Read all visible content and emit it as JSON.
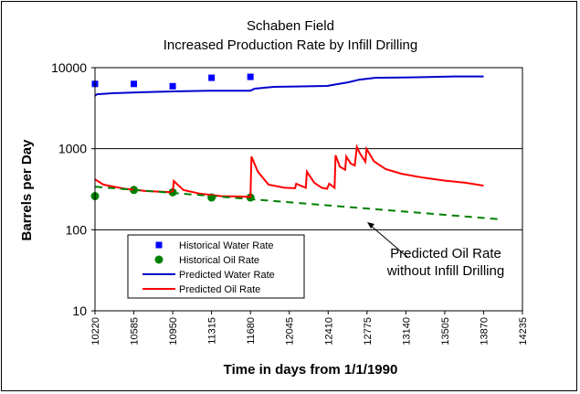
{
  "chart_data": {
    "type": "line",
    "title": "Schaben Field",
    "subtitle": "Increased Production Rate by Infill Drilling",
    "xlabel": "Time in days from 1/1/1990",
    "ylabel": "Barrels per Day",
    "xlim": [
      10220,
      14235
    ],
    "ylim": [
      10,
      10000
    ],
    "y_scale": "log",
    "grid": "horizontal major lines",
    "x_ticks": [
      "10220",
      "10585",
      "10950",
      "11315",
      "11680",
      "12045",
      "12410",
      "12775",
      "13140",
      "13505",
      "13870",
      "14235"
    ],
    "y_ticks": [
      "10",
      "100",
      "1000",
      "10000"
    ],
    "legend_position": "lower-left inside plot",
    "annotation": "Predicted Oil Rate\nwithout Infill Drilling",
    "series": [
      {
        "name": "Historical Water Rate",
        "kind": "marker-square",
        "color": "#0000ff",
        "points": [
          [
            10220,
            6300
          ],
          [
            10585,
            6300
          ],
          [
            10950,
            5900
          ],
          [
            11315,
            7500
          ],
          [
            11680,
            7700
          ]
        ]
      },
      {
        "name": "Historical Oil Rate",
        "kind": "marker-circle",
        "color": "#008000",
        "points": [
          [
            10220,
            260
          ],
          [
            10585,
            310
          ],
          [
            10950,
            290
          ],
          [
            11315,
            250
          ],
          [
            11680,
            250
          ]
        ]
      },
      {
        "name": "Predicted Water Rate",
        "kind": "line",
        "color": "#0000cc",
        "points": [
          [
            10220,
            4500
          ],
          [
            10240,
            4700
          ],
          [
            10400,
            4850
          ],
          [
            10700,
            5000
          ],
          [
            11000,
            5100
          ],
          [
            11300,
            5200
          ],
          [
            11680,
            5200
          ],
          [
            11720,
            5500
          ],
          [
            11900,
            5800
          ],
          [
            12100,
            5850
          ],
          [
            12400,
            5950
          ],
          [
            12600,
            6600
          ],
          [
            12700,
            7100
          ],
          [
            12850,
            7500
          ],
          [
            13200,
            7600
          ],
          [
            13600,
            7800
          ],
          [
            13870,
            7800
          ]
        ]
      },
      {
        "name": "Predicted Oil Rate",
        "kind": "line",
        "color": "#ff0000",
        "points": [
          [
            10220,
            420
          ],
          [
            10300,
            360
          ],
          [
            10500,
            320
          ],
          [
            10700,
            300
          ],
          [
            10950,
            290
          ],
          [
            10960,
            400
          ],
          [
            11050,
            310
          ],
          [
            11200,
            280
          ],
          [
            11400,
            260
          ],
          [
            11680,
            255
          ],
          [
            11690,
            800
          ],
          [
            11750,
            520
          ],
          [
            11850,
            360
          ],
          [
            12000,
            330
          ],
          [
            12100,
            325
          ],
          [
            12110,
            370
          ],
          [
            12150,
            350
          ],
          [
            12200,
            330
          ],
          [
            12210,
            520
          ],
          [
            12280,
            380
          ],
          [
            12350,
            330
          ],
          [
            12400,
            320
          ],
          [
            12420,
            370
          ],
          [
            12470,
            330
          ],
          [
            12480,
            830
          ],
          [
            12520,
            600
          ],
          [
            12570,
            550
          ],
          [
            12580,
            800
          ],
          [
            12620,
            660
          ],
          [
            12660,
            620
          ],
          [
            12680,
            1050
          ],
          [
            12710,
            870
          ],
          [
            12760,
            690
          ],
          [
            12770,
            1000
          ],
          [
            12840,
            700
          ],
          [
            12950,
            560
          ],
          [
            13100,
            490
          ],
          [
            13300,
            440
          ],
          [
            13500,
            405
          ],
          [
            13700,
            380
          ],
          [
            13870,
            350
          ]
        ]
      },
      {
        "kind": "dashed-line",
        "color": "#008000",
        "points": [
          [
            10220,
            340
          ],
          [
            14020,
            135
          ]
        ]
      }
    ]
  }
}
